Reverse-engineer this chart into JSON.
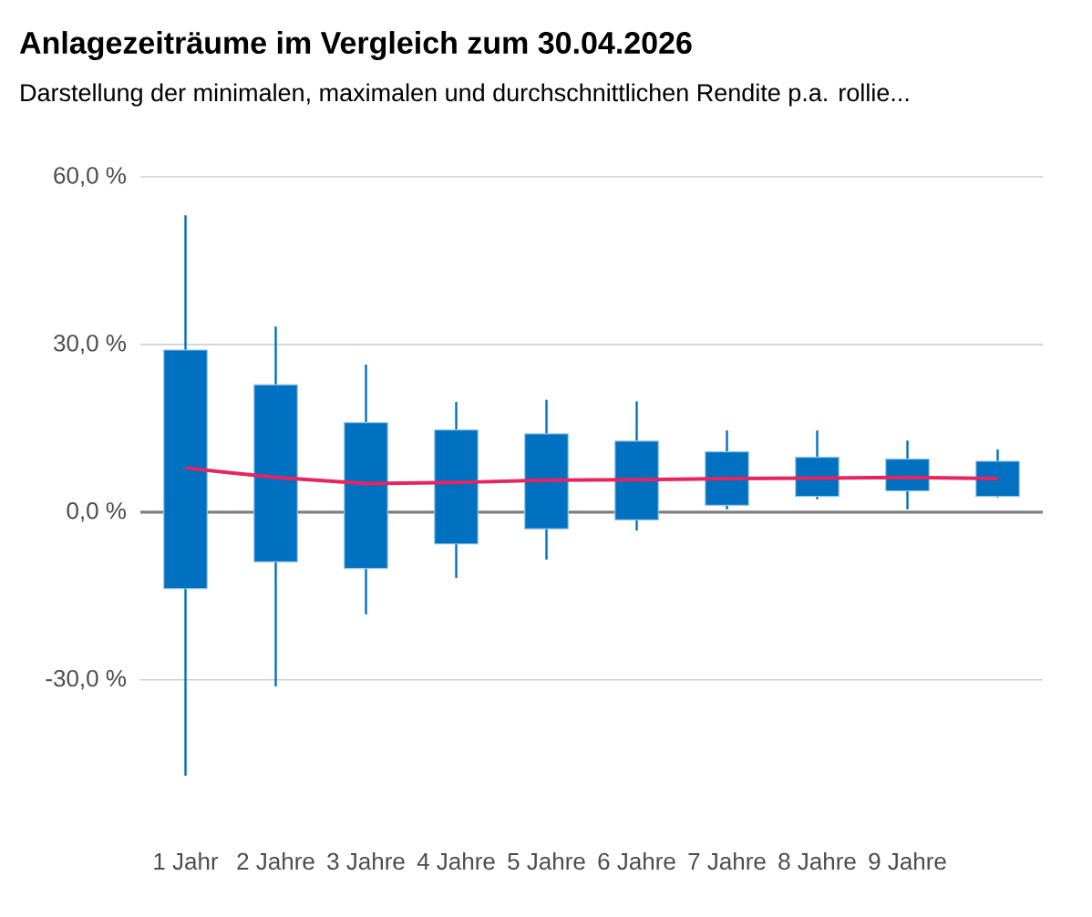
{
  "chart_data": {
    "type": "candlestick",
    "title": "Anlagezeiträume im Vergleich zum 30.04.2026",
    "subtitle": "Darstellung der minimalen, maximalen und durchschnittlichen Rendite p.a. rollie...",
    "categories": [
      "1 Jahr",
      "2 Jahre",
      "3 Jahre",
      "4 Jahre",
      "5 Jahre",
      "6 Jahre",
      "7 Jahre",
      "8 Jahre",
      "9 Jahre",
      null
    ],
    "color": "#0070c0",
    "ohlc": [
      [
        -13.7,
        53.1,
        -47.2,
        29.0
      ],
      [
        -8.9,
        33.2,
        -31.2,
        22.8
      ],
      [
        -10.1,
        26.4,
        -18.3,
        16.0
      ],
      [
        -5.7,
        19.7,
        -11.8,
        14.7
      ],
      [
        -3.0,
        20.1,
        -8.5,
        14.0
      ],
      [
        -1.4,
        19.8,
        -3.3,
        12.7
      ],
      [
        1.2,
        14.6,
        0.5,
        10.8
      ],
      [
        2.8,
        14.6,
        2.3,
        9.8
      ],
      [
        3.8,
        12.8,
        0.5,
        9.5
      ],
      [
        2.8,
        11.2,
        2.6,
        9.1
      ]
    ],
    "series": [
      {
        "type": "line",
        "color": "#e8245f",
        "values": [
          7.9,
          6.2,
          5.1,
          5.3,
          5.7,
          5.8,
          6.0,
          6.1,
          6.2,
          6.0
        ]
      }
    ],
    "ylim": [
      -48,
      60
    ],
    "yticks": [
      {
        "value": -30,
        "label": "-30,0 %"
      },
      {
        "value": 0,
        "label": "0,0 %"
      },
      {
        "value": 30,
        "label": "30,0 %"
      },
      {
        "value": 60,
        "label": "60,0 %"
      }
    ],
    "grid": "y",
    "ref_lines": [
      {
        "axis": "y",
        "value": 0,
        "color": "#7f7f7f"
      }
    ]
  }
}
